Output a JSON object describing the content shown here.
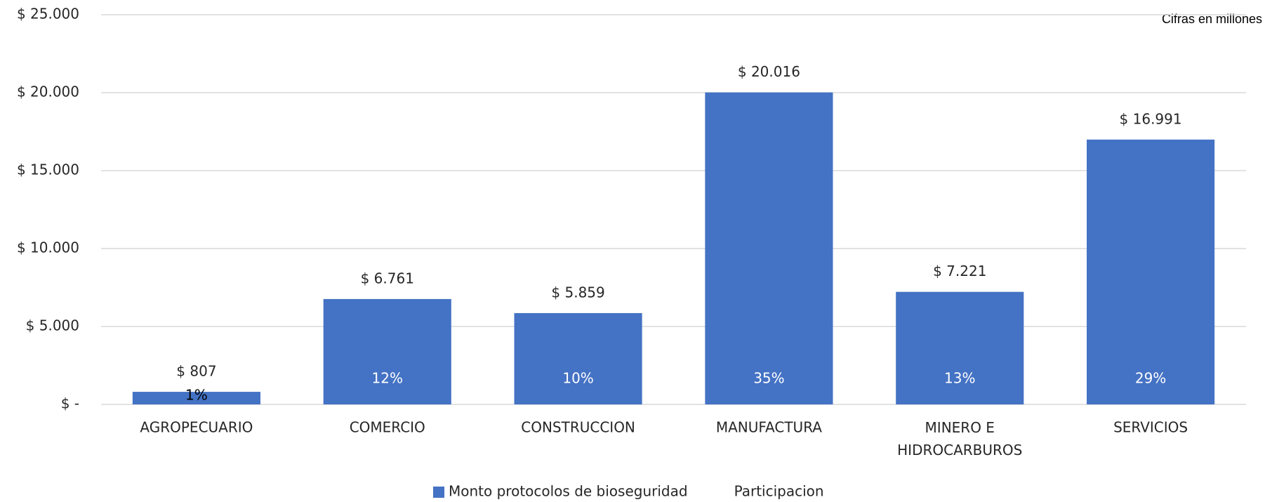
{
  "chart_data": {
    "type": "bar",
    "annotation": "Cifras en millones",
    "categories": [
      "AGROPECUARIO",
      "COMERCIO",
      "CONSTRUCCION",
      "MANUFACTURA",
      "MINERO E HIDROCARBUROS",
      "SERVICIOS"
    ],
    "series": [
      {
        "name": "Monto protocolos de bioseguridad",
        "color": "#4472c4",
        "values": [
          807,
          6761,
          5859,
          20016,
          7221,
          16991
        ],
        "value_labels": [
          "$ 807",
          "$ 6.761",
          "$ 5.859",
          "$ 20.016",
          "$ 7.221",
          "$ 16.991"
        ]
      },
      {
        "name": "Participacion",
        "values": [
          1,
          12,
          10,
          35,
          13,
          29
        ],
        "value_labels": [
          "1%",
          "12%",
          "10%",
          "35%",
          "13%",
          "29%"
        ]
      }
    ],
    "ylim": [
      0,
      25000
    ],
    "yticks": [
      {
        "value": 0,
        "label": "$ -"
      },
      {
        "value": 5000,
        "label": "$ 5.000"
      },
      {
        "value": 10000,
        "label": "$ 10.000"
      },
      {
        "value": 15000,
        "label": "$ 15.000"
      },
      {
        "value": 20000,
        "label": "$ 20.000"
      },
      {
        "value": 25000,
        "label": "$ 25.000"
      }
    ],
    "grid": true,
    "legend": "bottom"
  }
}
